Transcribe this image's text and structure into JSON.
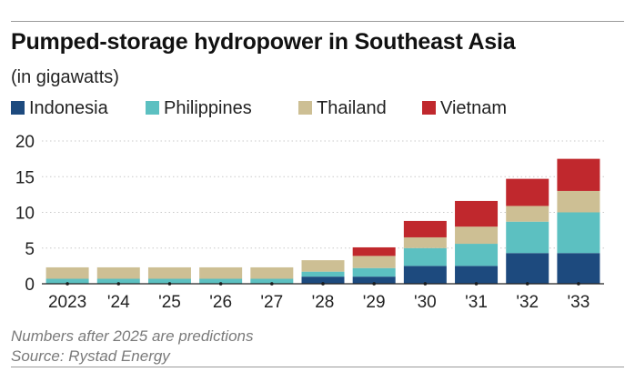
{
  "title": "Pumped-storage hydropower in Southeast Asia",
  "subtitle": "(in gigawatts)",
  "note": "Numbers after 2025 are predictions",
  "source": "Source: Rystad Energy",
  "colors": {
    "indonesia": "#1d4a7e",
    "philippines": "#5cc0c1",
    "thailand": "#cdbf94",
    "vietnam": "#c0282d",
    "grid": "#c9c9c9",
    "axis": "#222222",
    "marker": "#111111"
  },
  "legend": [
    {
      "label": "Indonesia",
      "color": "#1d4a7e"
    },
    {
      "label": "Philippines",
      "color": "#5cc0c1"
    },
    {
      "label": "Thailand",
      "color": "#cdbf94"
    },
    {
      "label": "Vietnam",
      "color": "#c0282d"
    }
  ],
  "chart_data": {
    "type": "bar",
    "stacked": true,
    "categories": [
      "2023",
      "'24",
      "'25",
      "'26",
      "'27",
      "'28",
      "'29",
      "'30",
      "'31",
      "'32",
      "'33"
    ],
    "series": [
      {
        "name": "Indonesia",
        "values": [
          0,
          0,
          0,
          0,
          0,
          1.0,
          1.0,
          2.5,
          2.5,
          4.3,
          4.3
        ]
      },
      {
        "name": "Philippines",
        "values": [
          0.7,
          0.7,
          0.7,
          0.7,
          0.7,
          0.7,
          1.2,
          2.5,
          3.1,
          4.4,
          5.7
        ]
      },
      {
        "name": "Thailand",
        "values": [
          1.6,
          1.6,
          1.6,
          1.6,
          1.6,
          1.6,
          1.7,
          1.5,
          2.4,
          2.2,
          3.0
        ]
      },
      {
        "name": "Vietnam",
        "values": [
          0,
          0,
          0,
          0,
          0,
          0,
          1.2,
          2.3,
          3.6,
          3.8,
          4.5
        ]
      }
    ],
    "yticks": [
      0,
      5,
      10,
      15,
      20
    ],
    "ylim": [
      0,
      20
    ],
    "grid": "horizontal dotted",
    "legend_position": "top-left"
  }
}
